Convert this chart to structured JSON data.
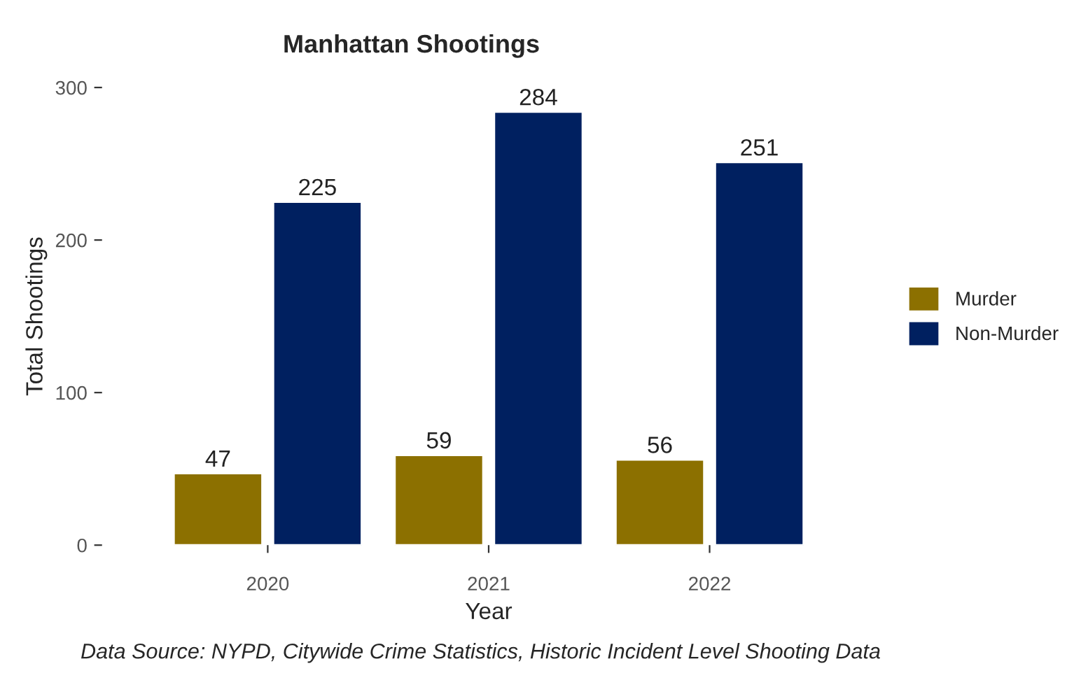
{
  "chart_data": {
    "type": "bar",
    "title": "Manhattan Shootings",
    "xlabel": "Year",
    "ylabel": "Total Shootings",
    "categories": [
      "2020",
      "2021",
      "2022"
    ],
    "series": [
      {
        "name": "Murder",
        "color": "#8c7000",
        "values": [
          47,
          59,
          56
        ]
      },
      {
        "name": "Non-Murder",
        "color": "#002060",
        "values": [
          225,
          284,
          251
        ]
      }
    ],
    "ylim": [
      0,
      300
    ],
    "yticks": [
      0,
      100,
      200,
      300
    ],
    "data_labels": true,
    "grid": false,
    "legend": "right",
    "annotations": [
      "Data Source: NYPD, Citywide Crime Statistics, Historic Incident Level Shooting Data"
    ]
  }
}
